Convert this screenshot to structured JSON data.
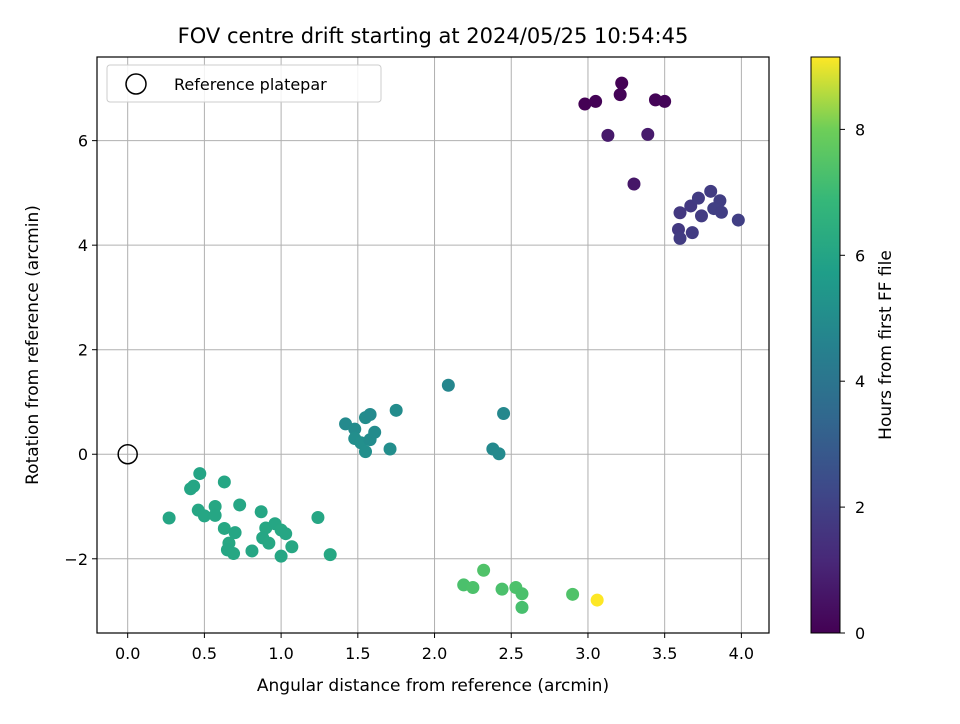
{
  "chart_data": {
    "type": "scatter",
    "title": "FOV centre drift starting at 2024/05/25 10:54:45",
    "xlabel": "Angular distance from reference (arcmin)",
    "ylabel": "Rotation from reference (arcmin)",
    "xlim": [
      -0.2,
      4.18
    ],
    "ylim": [
      -3.42,
      7.6
    ],
    "xticks": [
      0.0,
      0.5,
      1.0,
      1.5,
      2.0,
      2.5,
      3.0,
      3.5,
      4.0
    ],
    "xtick_labels": [
      "0.0",
      "0.5",
      "1.0",
      "1.5",
      "2.0",
      "2.5",
      "3.0",
      "3.5",
      "4.0"
    ],
    "yticks": [
      -2,
      0,
      2,
      4,
      6
    ],
    "ytick_labels": [
      "−2",
      "0",
      "2",
      "4",
      "6"
    ],
    "grid": true,
    "legend": {
      "entry": "Reference platepar",
      "placement": "top-left"
    },
    "reference_point": {
      "x": 0.0,
      "y": 0.0
    },
    "colorbar": {
      "label": "Hours from first FF file",
      "range": [
        0,
        9.15
      ],
      "ticks": [
        0,
        2,
        4,
        6,
        8
      ],
      "tick_labels": [
        "0",
        "2",
        "4",
        "6",
        "8"
      ],
      "colormap": "viridis"
    },
    "points": [
      {
        "x": 2.98,
        "y": 6.7,
        "c": 0.0
      },
      {
        "x": 3.05,
        "y": 6.75,
        "c": 0.05
      },
      {
        "x": 3.21,
        "y": 6.88,
        "c": 0.1
      },
      {
        "x": 3.22,
        "y": 7.1,
        "c": 0.02
      },
      {
        "x": 3.44,
        "y": 6.78,
        "c": 0.08
      },
      {
        "x": 3.5,
        "y": 6.75,
        "c": 0.12
      },
      {
        "x": 3.13,
        "y": 6.1,
        "c": 0.7
      },
      {
        "x": 3.39,
        "y": 6.12,
        "c": 0.75
      },
      {
        "x": 3.3,
        "y": 5.17,
        "c": 0.65
      },
      {
        "x": 3.6,
        "y": 4.62,
        "c": 1.7
      },
      {
        "x": 3.67,
        "y": 4.75,
        "c": 1.75
      },
      {
        "x": 3.72,
        "y": 4.9,
        "c": 1.8
      },
      {
        "x": 3.8,
        "y": 5.03,
        "c": 1.85
      },
      {
        "x": 3.86,
        "y": 4.85,
        "c": 1.9
      },
      {
        "x": 3.74,
        "y": 4.56,
        "c": 1.8
      },
      {
        "x": 3.82,
        "y": 4.7,
        "c": 1.95
      },
      {
        "x": 3.87,
        "y": 4.63,
        "c": 1.9
      },
      {
        "x": 3.59,
        "y": 4.3,
        "c": 1.75
      },
      {
        "x": 3.6,
        "y": 4.13,
        "c": 1.85
      },
      {
        "x": 3.68,
        "y": 4.24,
        "c": 1.8
      },
      {
        "x": 3.98,
        "y": 4.48,
        "c": 1.95
      },
      {
        "x": 1.42,
        "y": 0.58,
        "c": 4.9
      },
      {
        "x": 1.48,
        "y": 0.48,
        "c": 4.95
      },
      {
        "x": 1.55,
        "y": 0.7,
        "c": 5.0
      },
      {
        "x": 1.58,
        "y": 0.76,
        "c": 4.9
      },
      {
        "x": 1.48,
        "y": 0.3,
        "c": 5.05
      },
      {
        "x": 1.52,
        "y": 0.22,
        "c": 5.1
      },
      {
        "x": 1.58,
        "y": 0.28,
        "c": 5.0
      },
      {
        "x": 1.61,
        "y": 0.42,
        "c": 4.95
      },
      {
        "x": 1.55,
        "y": 0.05,
        "c": 5.1
      },
      {
        "x": 1.71,
        "y": 0.1,
        "c": 5.05
      },
      {
        "x": 1.75,
        "y": 0.84,
        "c": 5.0
      },
      {
        "x": 2.09,
        "y": 1.32,
        "c": 4.75
      },
      {
        "x": 2.45,
        "y": 0.78,
        "c": 4.8
      },
      {
        "x": 2.38,
        "y": 0.1,
        "c": 4.85
      },
      {
        "x": 2.42,
        "y": 0.01,
        "c": 4.9
      },
      {
        "x": 0.47,
        "y": -0.37,
        "c": 6.0
      },
      {
        "x": 0.43,
        "y": -0.61,
        "c": 6.05
      },
      {
        "x": 0.41,
        "y": -0.66,
        "c": 6.05
      },
      {
        "x": 0.63,
        "y": -0.53,
        "c": 6.1
      },
      {
        "x": 0.27,
        "y": -1.22,
        "c": 6.05
      },
      {
        "x": 0.46,
        "y": -1.07,
        "c": 6.1
      },
      {
        "x": 0.5,
        "y": -1.18,
        "c": 6.1
      },
      {
        "x": 0.57,
        "y": -1.0,
        "c": 6.15
      },
      {
        "x": 0.57,
        "y": -1.17,
        "c": 6.1
      },
      {
        "x": 0.73,
        "y": -0.97,
        "c": 6.1
      },
      {
        "x": 0.63,
        "y": -1.42,
        "c": 6.15
      },
      {
        "x": 0.7,
        "y": -1.5,
        "c": 6.1
      },
      {
        "x": 0.66,
        "y": -1.7,
        "c": 6.15
      },
      {
        "x": 0.65,
        "y": -1.83,
        "c": 6.1
      },
      {
        "x": 0.69,
        "y": -1.9,
        "c": 6.15
      },
      {
        "x": 0.81,
        "y": -1.85,
        "c": 6.1
      },
      {
        "x": 0.87,
        "y": -1.1,
        "c": 6.1
      },
      {
        "x": 0.9,
        "y": -1.41,
        "c": 6.15
      },
      {
        "x": 0.96,
        "y": -1.33,
        "c": 6.1
      },
      {
        "x": 1.0,
        "y": -1.45,
        "c": 6.15
      },
      {
        "x": 0.88,
        "y": -1.6,
        "c": 6.1
      },
      {
        "x": 0.92,
        "y": -1.7,
        "c": 6.15
      },
      {
        "x": 1.03,
        "y": -1.52,
        "c": 6.1
      },
      {
        "x": 1.07,
        "y": -1.77,
        "c": 6.15
      },
      {
        "x": 1.0,
        "y": -1.95,
        "c": 6.1
      },
      {
        "x": 1.24,
        "y": -1.21,
        "c": 6.1
      },
      {
        "x": 1.32,
        "y": -1.92,
        "c": 6.15
      },
      {
        "x": 2.19,
        "y": -2.5,
        "c": 7.3
      },
      {
        "x": 2.25,
        "y": -2.55,
        "c": 7.35
      },
      {
        "x": 2.32,
        "y": -2.22,
        "c": 7.4
      },
      {
        "x": 2.44,
        "y": -2.58,
        "c": 7.3
      },
      {
        "x": 2.53,
        "y": -2.55,
        "c": 7.35
      },
      {
        "x": 2.57,
        "y": -2.67,
        "c": 7.3
      },
      {
        "x": 2.57,
        "y": -2.93,
        "c": 7.25
      },
      {
        "x": 2.9,
        "y": -2.68,
        "c": 7.4
      },
      {
        "x": 3.06,
        "y": -2.79,
        "c": 9.15
      }
    ]
  }
}
